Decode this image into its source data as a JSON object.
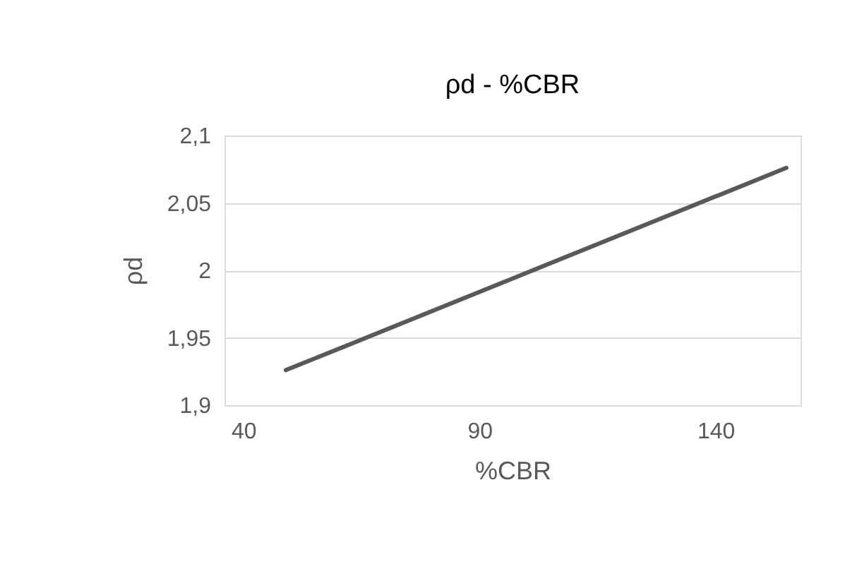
{
  "chart_data": {
    "type": "line",
    "title": "ρd - %CBR",
    "xlabel": "%CBR",
    "ylabel": "ρd",
    "x": [
      49,
      155
    ],
    "series": [
      {
        "color": "#595959",
        "values": [
          1.926,
          2.076
        ]
      }
    ],
    "xlim": [
      36,
      158
    ],
    "xticks": [
      40,
      90,
      140
    ],
    "ylim": [
      1.9,
      2.1
    ],
    "yticks": [
      {
        "value": 1.9,
        "label": "1,9"
      },
      {
        "value": 1.95,
        "label": "1,95"
      },
      {
        "value": 2,
        "label": "2"
      },
      {
        "value": 2.05,
        "label": "2,05"
      },
      {
        "value": 2.1,
        "label": "2,1"
      }
    ],
    "grid": "y",
    "legend": false,
    "marker": "none",
    "line_style": "solid"
  }
}
